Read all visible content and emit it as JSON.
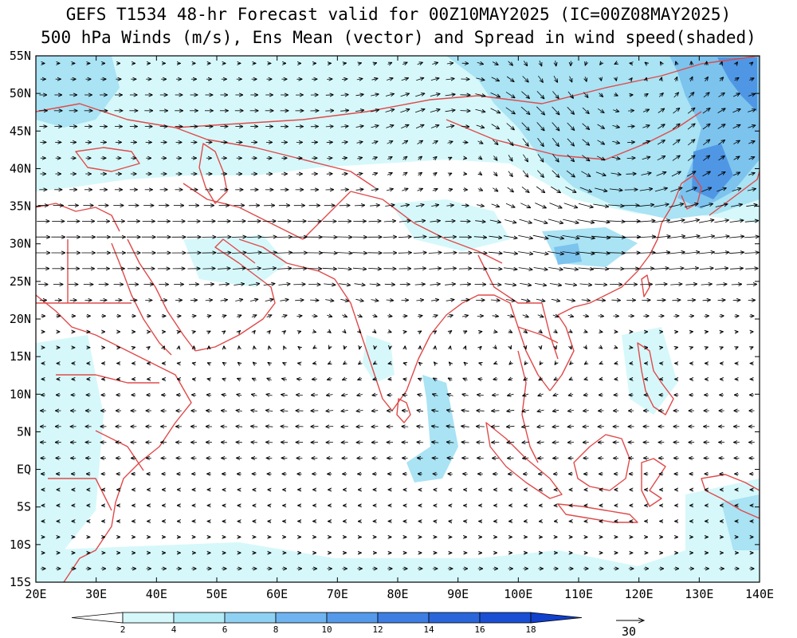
{
  "title_line1": "GEFS T1534 48-hr Forecast valid for 00Z10MAY2025 (IC=00Z08MAY2025)",
  "title_line2": "500 hPa Winds (m/s), Ens Mean (vector) and Spread in wind speed(shaded)",
  "lat_labels": [
    "55N",
    "50N",
    "45N",
    "40N",
    "35N",
    "30N",
    "25N",
    "20N",
    "15N",
    "10N",
    "5N",
    "EQ",
    "5S",
    "10S",
    "15S"
  ],
  "lat_values": [
    55,
    50,
    45,
    40,
    35,
    30,
    25,
    20,
    15,
    10,
    5,
    0,
    -5,
    -10,
    -15
  ],
  "lon_labels": [
    "20E",
    "30E",
    "40E",
    "50E",
    "60E",
    "70E",
    "80E",
    "90E",
    "100E",
    "110E",
    "120E",
    "130E",
    "140E"
  ],
  "lon_values": [
    20,
    30,
    40,
    50,
    60,
    70,
    80,
    90,
    100,
    110,
    120,
    130,
    140
  ],
  "map_extent": {
    "lon_min": 20,
    "lon_max": 140,
    "lat_min": -15,
    "lat_max": 55
  },
  "colorbar": {
    "labels": [
      "2",
      "4",
      "6",
      "8",
      "10",
      "12",
      "14",
      "16",
      "18"
    ],
    "colors": [
      "#ffffff",
      "#d6f8fa",
      "#b2eaf6",
      "#8fd1f3",
      "#6fb4f0",
      "#5599ea",
      "#3e7ee2",
      "#2a66da",
      "#1a4fd4",
      "#1040cc"
    ]
  },
  "reference_vector": {
    "label": "30",
    "speed_ms": 30
  },
  "colors": {
    "coastline": "#e04a4a",
    "vectors": "#000000",
    "shade_light": "#d6f8fa",
    "shade_mid": "#a9e3f4",
    "shade_dark": "#7cc3ee",
    "shade_darker": "#4f97e4"
  }
}
